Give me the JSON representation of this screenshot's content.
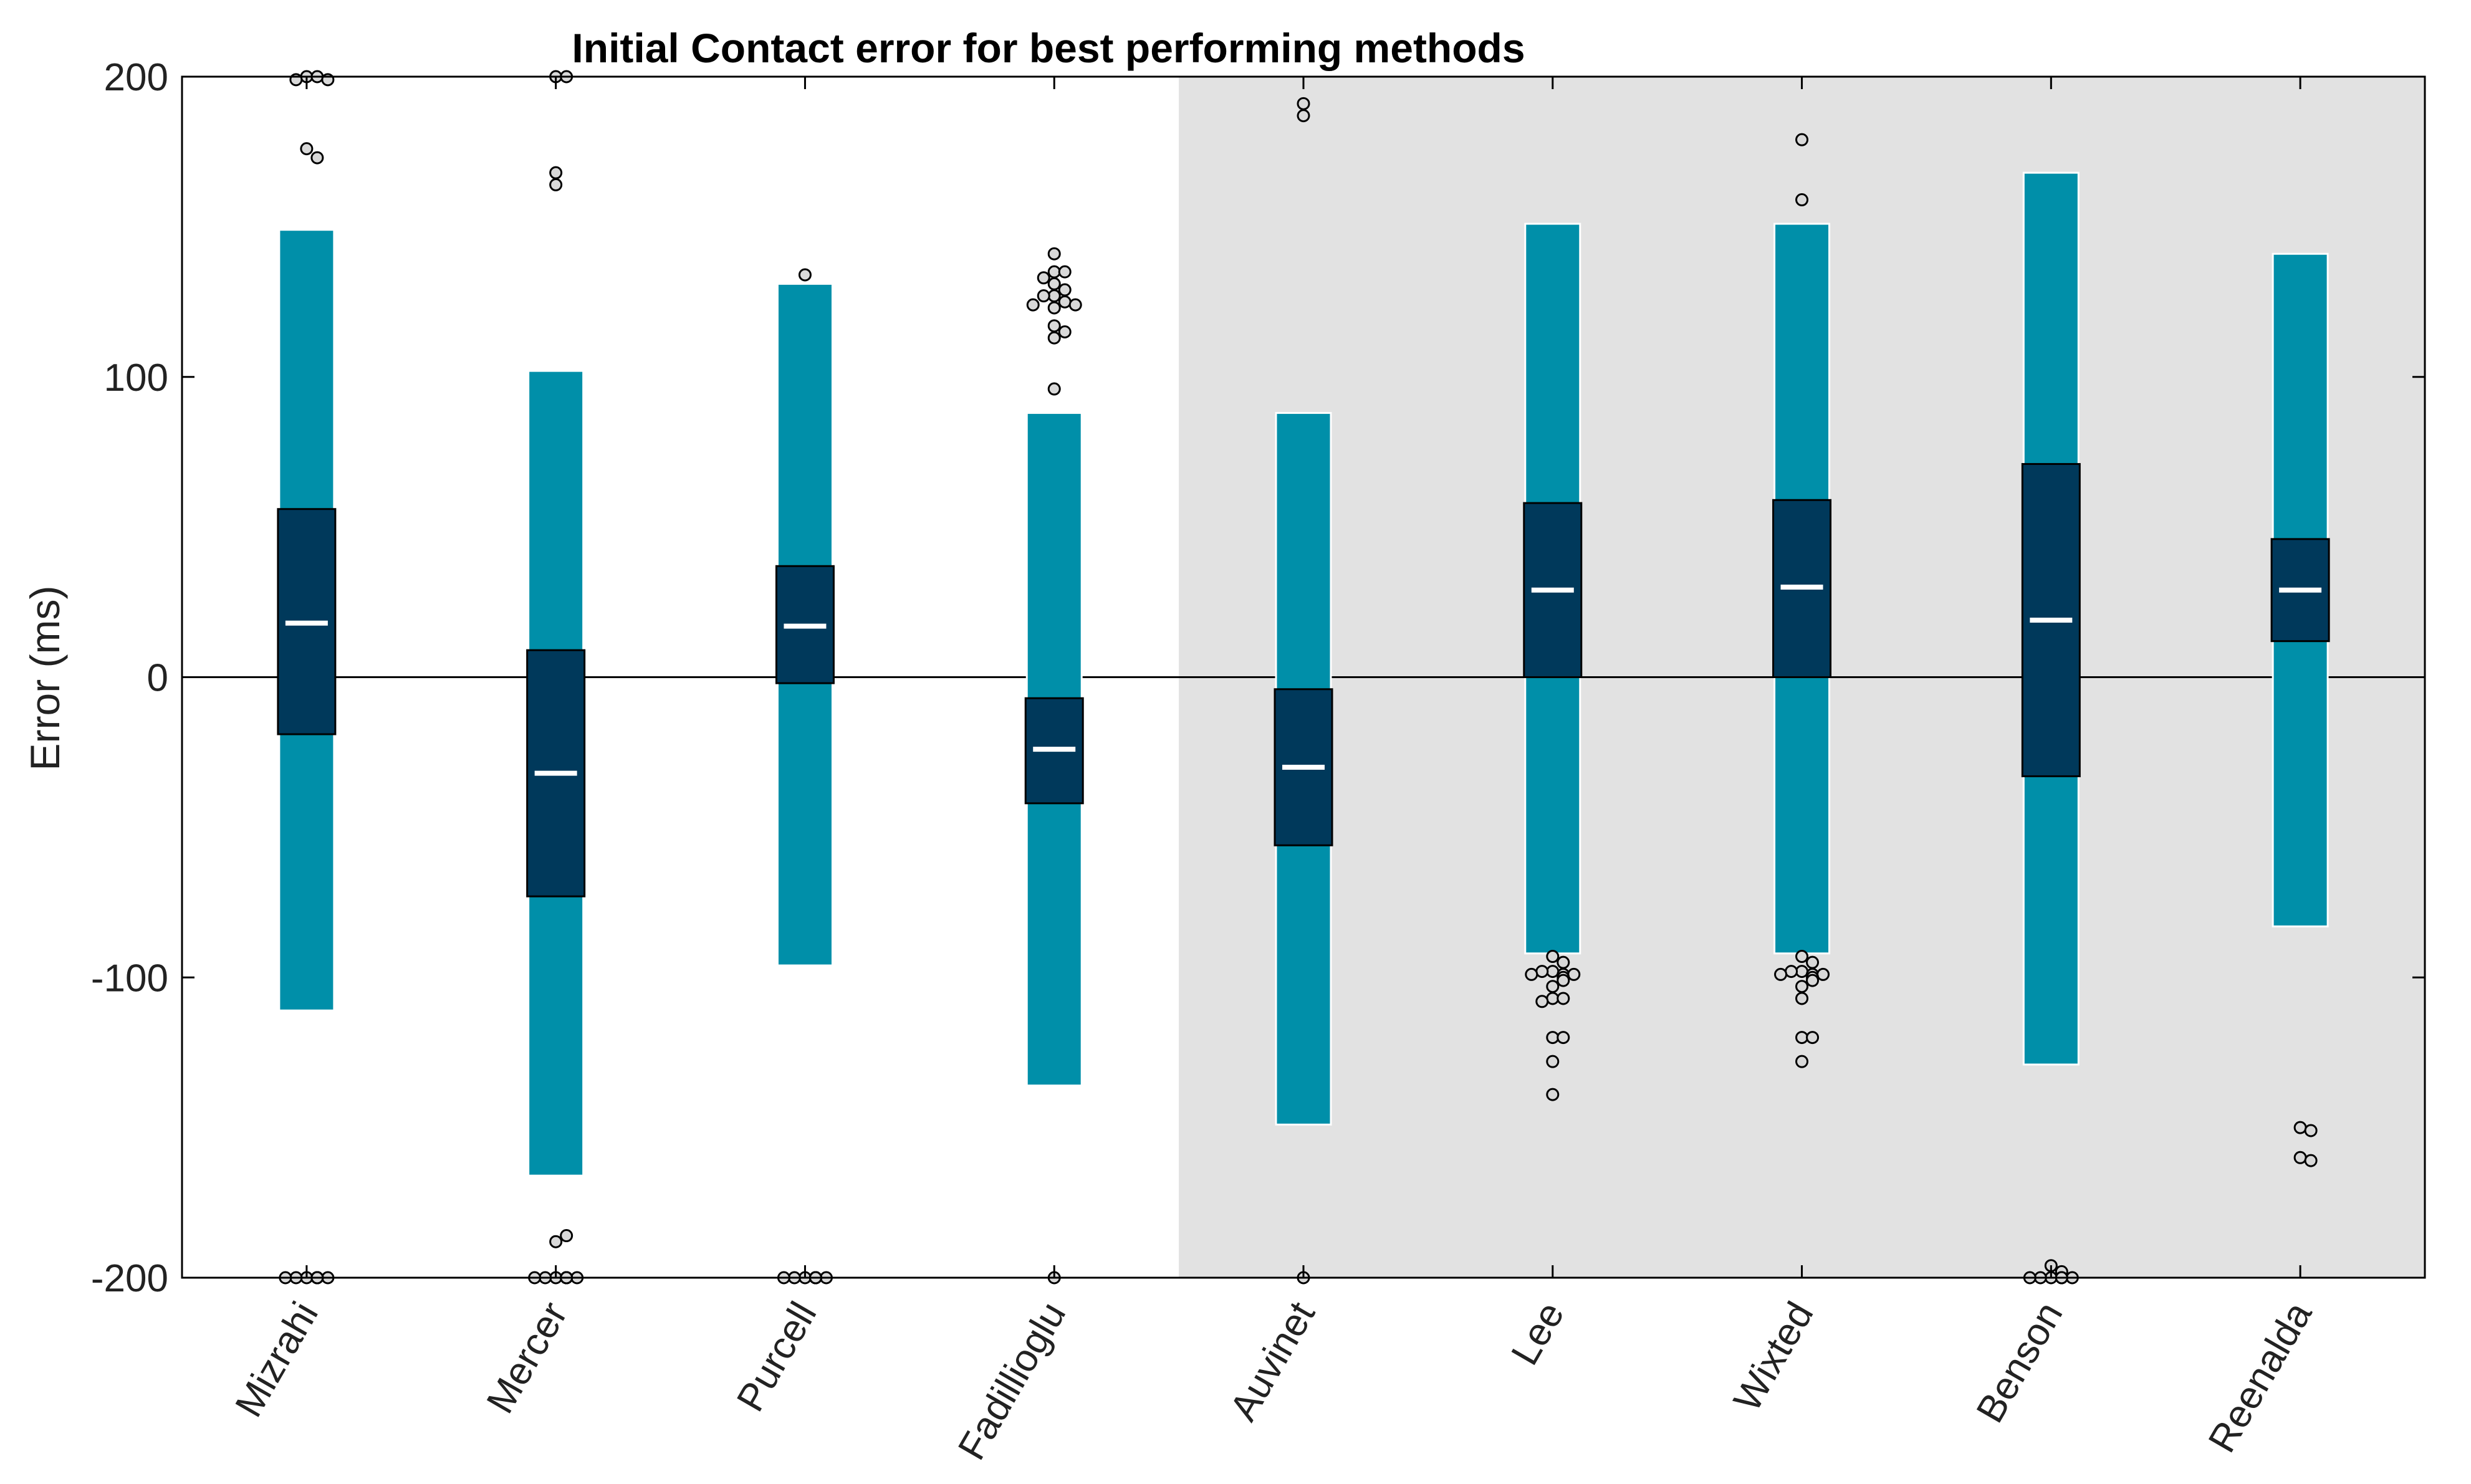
{
  "chart_data": {
    "type": "boxplot",
    "title": "Initial Contact error for best performing methods",
    "xlabel": "",
    "ylabel": "Error (ms)",
    "ylim": [
      -200,
      200
    ],
    "yticks": [
      -200,
      -100,
      0,
      100,
      200
    ],
    "ytick_labels": [
      "-200",
      "-100",
      "0",
      "100",
      "200"
    ],
    "grid": false,
    "zero_line": true,
    "shaded_region": {
      "from_category": "Auvinet",
      "to_category": "Reenalda",
      "color": "#e2e2e2"
    },
    "colors": {
      "whisker": "#008fa9",
      "box": "#00395b",
      "median": "#ffffff",
      "outlier_fill": "#d9d9d9",
      "outlier_edge": "#000000",
      "axis": "#000000",
      "shade": "#e2e2e2"
    },
    "categories": [
      "Mizrahi",
      "Mercer",
      "Purcell",
      "Fadillioglu",
      "Auvinet",
      "Lee",
      "Wixted",
      "Benson",
      "Reenalda"
    ],
    "boxes": [
      {
        "name": "Mizrahi",
        "whisker_low": -111,
        "q1": -19,
        "median": 18,
        "q3": 56,
        "whisker_high": 149,
        "outliers": [
          200,
          200,
          199,
          199,
          176,
          173,
          -200,
          -200,
          -200,
          -200,
          -200,
          -200,
          -200,
          -200,
          -200,
          -200,
          -200,
          -200,
          -200,
          -200
        ]
      },
      {
        "name": "Mercer",
        "whisker_low": -166,
        "q1": -73,
        "median": -32,
        "q3": 9,
        "whisker_high": 102,
        "outliers": [
          200,
          200,
          168,
          164,
          -188,
          -186,
          -200,
          -200,
          -200,
          -200,
          -200,
          -200,
          -200,
          -200,
          -200,
          -200,
          -200,
          -200,
          -200,
          -200,
          -200
        ]
      },
      {
        "name": "Purcell",
        "whisker_low": -96,
        "q1": -2,
        "median": 17,
        "q3": 37,
        "whisker_high": 131,
        "outliers": [
          134,
          -200,
          -200,
          -200,
          -200,
          -200,
          -200,
          -200,
          -200,
          -200,
          -200,
          -200,
          -200,
          -200,
          -200
        ]
      },
      {
        "name": "Fadillioglu",
        "whisker_low": -136,
        "q1": -42,
        "median": -24,
        "q3": -7,
        "whisker_high": 88,
        "outliers": [
          141,
          135,
          135,
          133,
          131,
          129,
          127,
          127,
          125,
          124,
          124,
          123,
          117,
          115,
          113,
          96,
          -200
        ]
      },
      {
        "name": "Auvinet",
        "whisker_low": -149,
        "q1": -56,
        "median": -30,
        "q3": -4,
        "whisker_high": 88,
        "outliers": [
          191,
          187,
          -200
        ]
      },
      {
        "name": "Lee",
        "whisker_low": -92,
        "q1": 0,
        "median": 29,
        "q3": 58,
        "whisker_high": 151,
        "outliers": [
          -93,
          -95,
          -98,
          -98,
          -99,
          -99,
          -99,
          -100,
          -101,
          -103,
          -107,
          -107,
          -108,
          -120,
          -120,
          -128,
          -139
        ]
      },
      {
        "name": "Wixted",
        "whisker_low": -92,
        "q1": 0,
        "median": 30,
        "q3": 59,
        "whisker_high": 151,
        "outliers": [
          179,
          159,
          -93,
          -95,
          -98,
          -98,
          -99,
          -99,
          -99,
          -100,
          -101,
          -103,
          -107,
          -120,
          -120,
          -128
        ]
      },
      {
        "name": "Benson",
        "whisker_low": -129,
        "q1": -33,
        "median": 19,
        "q3": 71,
        "whisker_high": 168,
        "outliers": [
          -196,
          -198,
          -200,
          -200,
          -200,
          -200,
          -200,
          -200,
          -200
        ]
      },
      {
        "name": "Reenalda",
        "whisker_low": -83,
        "q1": 12,
        "median": 29,
        "q3": 46,
        "whisker_high": 141,
        "outliers": [
          -150,
          -151,
          -160,
          -161
        ]
      }
    ]
  }
}
